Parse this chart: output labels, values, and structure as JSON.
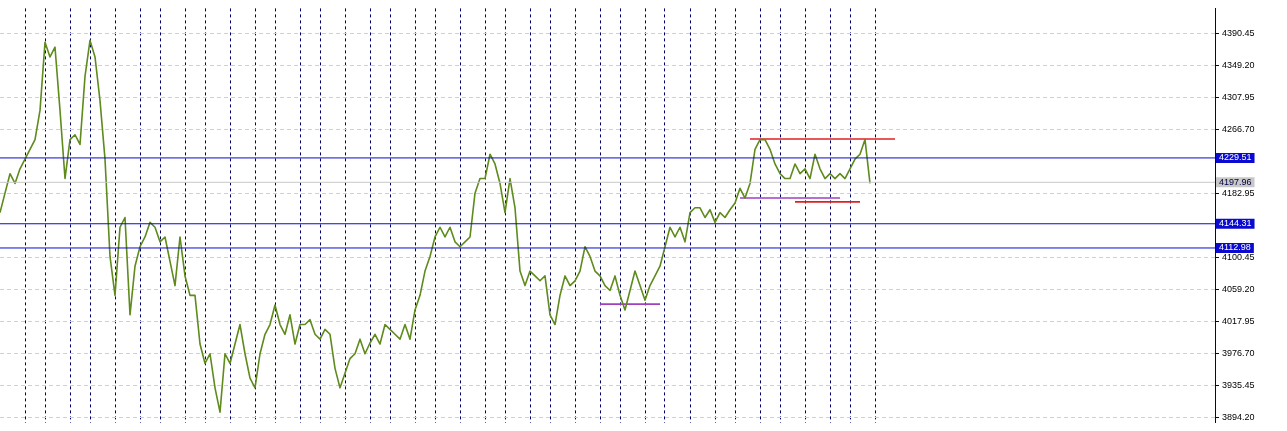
{
  "chart_data": {
    "type": "line",
    "categories": [
      null,
      null,
      null,
      null,
      null,
      null,
      null,
      null,
      null,
      null,
      null,
      null,
      null,
      null,
      null,
      null,
      null,
      null,
      null,
      null,
      null,
      null,
      null,
      null,
      null,
      null,
      null,
      null,
      null,
      null,
      null,
      null,
      null,
      null,
      null,
      null,
      null,
      null,
      null,
      null,
      null,
      null,
      null,
      null,
      null,
      null,
      null,
      null,
      null,
      null,
      null,
      null,
      null,
      null,
      null,
      null,
      null,
      null,
      null,
      null,
      null,
      null,
      null,
      null,
      null,
      null,
      null,
      null,
      null,
      null,
      null,
      null,
      null,
      null,
      null,
      null,
      null,
      null,
      null,
      null,
      null,
      null,
      null,
      null,
      null,
      null,
      null,
      null,
      null,
      null,
      null,
      null,
      null,
      null,
      null,
      null,
      null,
      null,
      null,
      null,
      null,
      null,
      null,
      null,
      null,
      null,
      null,
      null,
      null,
      null,
      null,
      null,
      null,
      null,
      null,
      null,
      null,
      null,
      null,
      null,
      null,
      null,
      null,
      null,
      null,
      null,
      null,
      null,
      null,
      null,
      null,
      null,
      null,
      null,
      null,
      null,
      null,
      null,
      null,
      null,
      null,
      null,
      null,
      null,
      null,
      null,
      null,
      null,
      null,
      null,
      null,
      null,
      null,
      null,
      null,
      null,
      null,
      null,
      null,
      null,
      null,
      null,
      null,
      null,
      null,
      null,
      null,
      null,
      null,
      null,
      null,
      null,
      null,
      null,
      null,
      null,
      null,
      null,
      null,
      null,
      null,
      null,
      null,
      null,
      null,
      null,
      null,
      null,
      null,
      null,
      null,
      null,
      null,
      null,
      null,
      null,
      null,
      null,
      null,
      null,
      null,
      null,
      null,
      null,
      null,
      null,
      null,
      null,
      null,
      null,
      null,
      null,
      null,
      null,
      null,
      null,
      null,
      null,
      null,
      null,
      null,
      null,
      null,
      null,
      null,
      null,
      null,
      null,
      null,
      null,
      null,
      null,
      null,
      null,
      null,
      null,
      null,
      null,
      null,
      null,
      null,
      null,
      null,
      null
    ],
    "ylim": [
      3887,
      4423
    ],
    "yticks": [
      4390.45,
      {
        "value": 4349.2,
        "label": "4349.20"
      },
      4307.95,
      {
        "value": 4266.7,
        "label": "4266.70"
      },
      4182.95,
      4100.45,
      {
        "value": 4059.2,
        "label": "4059.20"
      },
      4017.95,
      {
        "value": 3976.7,
        "label": "3976.70"
      },
      3935.45,
      {
        "value": 3894.2,
        "label": "3894.20"
      }
    ],
    "tick_labels": "y",
    "grid": true,
    "legend": false,
    "marker": "none",
    "line_style": "solid",
    "series": [
      {
        "color": "#5f8a1c",
        "values": [
          4158.7,
          4183.9,
          4209.1,
          4196.5,
          4215.4,
          4228.0,
          4240.6,
          4253.2,
          4291.0,
          4379.1,
          4360.2,
          4372.8,
          4291.0,
          4202.8,
          4253.2,
          4259.5,
          4246.9,
          4335.0,
          4381.6,
          4360.2,
          4303.6,
          4228.0,
          4102.0,
          4051.7,
          4139.8,
          4152.4,
          4026.5,
          4089.4,
          4114.6,
          4127.2,
          4146.1,
          4139.8,
          4120.9,
          4127.2,
          4095.7,
          4064.3,
          4127.2,
          4076.8,
          4051.7,
          4051.7,
          3988.7,
          3963.5,
          3976.1,
          3932.0,
          3900.5,
          3976.1,
          3963.5,
          3988.7,
          4013.9,
          3976.1,
          3944.6,
          3932.0,
          3976.1,
          4001.3,
          4013.9,
          4039.1,
          4013.9,
          4001.3,
          4026.5,
          3988.7,
          4013.9,
          4013.9,
          4020.2,
          4001.3,
          3995.0,
          4007.6,
          4001.3,
          3957.2,
          3932.0,
          3950.9,
          3969.8,
          3976.1,
          3995.0,
          3976.1,
          3990.0,
          4001.3,
          3988.7,
          4013.9,
          4007.6,
          4001.3,
          3995.0,
          4013.9,
          3995.0,
          4032.8,
          4051.7,
          4083.1,
          4102.0,
          4127.2,
          4139.8,
          4127.2,
          4139.8,
          4120.9,
          4114.6,
          4120.9,
          4127.2,
          4183.9,
          4202.8,
          4202.8,
          4234.3,
          4221.7,
          4196.5,
          4158.7,
          4202.8,
          4165.0,
          4083.1,
          4064.3,
          4083.1,
          4076.8,
          4070.5,
          4076.8,
          4026.5,
          4013.9,
          4051.7,
          4076.8,
          4064.3,
          4070.5,
          4083.1,
          4114.6,
          4102.0,
          4083.1,
          4076.8,
          4064.3,
          4058.0,
          4076.8,
          4051.7,
          4032.8,
          4058.0,
          4083.1,
          4064.3,
          4045.4,
          4064.3,
          4076.8,
          4089.4,
          4114.6,
          4139.8,
          4127.2,
          4139.8,
          4120.9,
          4158.7,
          4165.0,
          4165.0,
          4152.4,
          4162.5,
          4146.1,
          4158.7,
          4152.4,
          4162.5,
          4171.3,
          4190.2,
          4177.6,
          4196.5,
          4240.6,
          4253.2,
          4253.2,
          4240.6,
          4221.7,
          4209.1,
          4202.8,
          4202.8,
          4221.7,
          4209.1,
          4215.4,
          4202.8,
          4234.3,
          4215.4,
          4202.8,
          4209.1,
          4202.8,
          4209.1,
          4202.8,
          4215.4,
          4228.0,
          4234.3,
          4253.2,
          4196.5,
          null,
          null,
          null,
          null,
          null,
          null,
          null,
          null,
          null,
          null,
          null,
          null,
          null,
          null,
          null,
          null,
          null,
          null,
          null,
          null,
          null,
          null,
          null,
          null,
          null,
          null,
          null,
          null,
          null,
          null,
          null,
          null,
          null,
          null,
          null,
          null,
          null,
          null,
          null,
          null,
          null,
          null,
          null,
          null,
          null,
          null,
          null,
          null,
          null,
          null,
          null,
          null,
          null,
          null,
          null,
          null,
          null,
          null,
          null,
          null,
          null,
          null,
          null,
          null,
          null,
          null,
          null,
          null,
          null
        ]
      },
      {
        "color": "#e02020",
        "values": [
          null,
          null,
          null,
          null,
          null,
          null,
          null,
          null,
          null,
          null,
          null,
          null,
          null,
          null,
          null,
          null,
          null,
          null,
          null,
          null,
          null,
          null,
          null,
          null,
          null,
          null,
          null,
          null,
          null,
          null,
          null,
          null,
          null,
          null,
          null,
          null,
          null,
          null,
          null,
          null,
          null,
          null,
          null,
          null,
          null,
          null,
          null,
          null,
          null,
          null,
          null,
          null,
          null,
          null,
          null,
          null,
          null,
          null,
          null,
          null,
          null,
          null,
          null,
          null,
          null,
          null,
          null,
          null,
          null,
          null,
          null,
          null,
          null,
          null,
          null,
          null,
          null,
          null,
          null,
          null,
          null,
          null,
          null,
          null,
          null,
          null,
          null,
          null,
          null,
          null,
          null,
          null,
          null,
          null,
          null,
          null,
          null,
          null,
          null,
          null,
          null,
          null,
          null,
          null,
          null,
          null,
          null,
          null,
          null,
          null,
          null,
          null,
          null,
          null,
          null,
          null,
          null,
          null,
          null,
          null,
          null,
          null,
          null,
          null,
          null,
          null,
          null,
          null,
          null,
          null,
          null,
          null,
          null,
          null,
          null,
          null,
          null,
          null,
          null,
          null,
          null,
          null,
          null,
          null,
          null,
          null,
          null,
          null,
          null,
          null,
          4254,
          4254,
          4254,
          4254,
          4254,
          4254,
          4254,
          4254,
          4254,
          4254,
          4254,
          4254,
          4254,
          4254,
          4254,
          4254,
          4254,
          4254,
          4254,
          4254,
          4254,
          4254,
          4254,
          4254,
          4254,
          4254,
          4254,
          4254,
          4254,
          4254,
          null,
          null,
          null,
          null,
          null,
          null,
          null,
          null,
          null,
          null,
          null,
          null,
          null,
          null,
          null,
          null,
          null,
          null,
          null,
          null,
          null,
          null,
          null,
          null,
          null,
          null,
          null,
          null,
          null,
          null,
          null,
          null,
          null,
          null,
          null,
          null,
          null,
          null,
          null,
          null,
          null,
          null,
          null,
          null,
          null,
          null,
          null,
          null,
          null,
          null,
          null,
          null,
          null,
          null,
          null,
          null,
          null,
          null,
          null,
          null,
          null,
          null,
          null,
          null
        ]
      },
      {
        "color": "#e02020",
        "values": [
          null,
          null,
          null,
          null,
          null,
          null,
          null,
          null,
          null,
          null,
          null,
          null,
          null,
          null,
          null,
          null,
          null,
          null,
          null,
          null,
          null,
          null,
          null,
          null,
          null,
          null,
          null,
          null,
          null,
          null,
          null,
          null,
          null,
          null,
          null,
          null,
          null,
          null,
          null,
          null,
          null,
          null,
          null,
          null,
          null,
          null,
          null,
          null,
          null,
          null,
          null,
          null,
          null,
          null,
          null,
          null,
          null,
          null,
          null,
          null,
          null,
          null,
          null,
          null,
          null,
          null,
          null,
          null,
          null,
          null,
          null,
          null,
          null,
          null,
          null,
          null,
          null,
          null,
          null,
          null,
          null,
          null,
          null,
          null,
          null,
          null,
          null,
          null,
          null,
          null,
          null,
          null,
          null,
          null,
          null,
          null,
          null,
          null,
          null,
          null,
          null,
          null,
          null,
          null,
          null,
          null,
          null,
          null,
          null,
          null,
          null,
          null,
          null,
          null,
          null,
          null,
          null,
          null,
          null,
          null,
          null,
          null,
          null,
          null,
          null,
          null,
          null,
          null,
          null,
          null,
          null,
          null,
          null,
          null,
          null,
          null,
          null,
          null,
          null,
          null,
          null,
          null,
          null,
          null,
          null,
          null,
          null,
          null,
          null,
          null,
          null,
          null,
          null,
          null,
          null,
          null,
          null,
          null,
          null,
          4172.6,
          4172.6,
          4172.6,
          4172.6,
          4172.6,
          4172.6,
          4172.6,
          4172.6,
          4172.6,
          4172.6,
          4172.6,
          4172.6,
          4172.6,
          4172.6,
          null,
          null,
          null,
          null,
          null,
          null,
          null,
          null,
          null,
          null,
          null,
          null,
          null,
          null,
          null,
          null,
          null,
          null,
          null,
          null,
          null,
          null,
          null,
          null,
          null,
          null,
          null,
          null,
          null,
          null,
          null,
          null,
          null,
          null,
          null,
          null,
          null,
          null,
          null,
          null,
          null,
          null,
          null,
          null,
          null,
          null,
          null,
          null,
          null,
          null,
          null,
          null,
          null,
          null,
          null,
          null,
          null,
          null,
          null,
          null,
          null,
          null,
          null,
          null,
          null,
          null,
          null,
          null,
          null,
          null,
          null
        ]
      },
      {
        "color": "#a040c0",
        "values": [
          null,
          null,
          null,
          null,
          null,
          null,
          null,
          null,
          null,
          null,
          null,
          null,
          null,
          null,
          null,
          null,
          null,
          null,
          null,
          null,
          null,
          null,
          null,
          null,
          null,
          null,
          null,
          null,
          null,
          null,
          null,
          null,
          null,
          null,
          null,
          null,
          null,
          null,
          null,
          null,
          null,
          null,
          null,
          null,
          null,
          null,
          null,
          null,
          null,
          null,
          null,
          null,
          null,
          null,
          null,
          null,
          null,
          null,
          null,
          null,
          null,
          null,
          null,
          null,
          null,
          null,
          null,
          null,
          null,
          null,
          null,
          null,
          null,
          null,
          null,
          null,
          null,
          null,
          null,
          null,
          null,
          null,
          null,
          null,
          null,
          null,
          null,
          null,
          null,
          null,
          null,
          null,
          null,
          null,
          null,
          null,
          null,
          null,
          null,
          null,
          null,
          null,
          null,
          null,
          null,
          null,
          null,
          null,
          null,
          null,
          null,
          null,
          null,
          null,
          null,
          null,
          null,
          null,
          null,
          null,
          null,
          null,
          null,
          null,
          null,
          null,
          null,
          null,
          null,
          null,
          null,
          null,
          null,
          null,
          null,
          null,
          null,
          null,
          null,
          null,
          null,
          null,
          null,
          null,
          null,
          null,
          null,
          null,
          4177.6,
          4177.6,
          4177.6,
          4177.6,
          4177.6,
          4177.6,
          4177.6,
          4177.6,
          4177.6,
          4177.6,
          4177.6,
          4177.6,
          4177.6,
          4177.6,
          4177.6,
          4177.6,
          4177.6,
          4177.6,
          4177.6,
          4177.6,
          4177.6,
          null,
          null,
          null,
          null,
          null,
          null,
          null,
          null,
          null,
          null,
          null,
          null,
          null,
          null,
          null,
          null,
          null,
          null,
          null,
          null,
          null,
          null,
          null,
          null,
          null,
          null,
          null,
          null,
          null,
          null,
          null,
          null,
          null,
          null,
          null,
          null,
          null,
          null,
          null,
          null,
          null,
          null,
          null,
          null,
          null,
          null,
          null,
          null,
          null,
          null,
          null,
          null,
          null,
          null,
          null,
          null,
          null,
          null,
          null,
          null,
          null,
          null,
          null,
          null,
          null,
          null,
          null,
          null,
          null,
          null,
          null,
          null,
          null,
          null,
          null
        ]
      },
      {
        "color": "#a040c0",
        "values": [
          null,
          null,
          null,
          null,
          null,
          null,
          null,
          null,
          null,
          null,
          null,
          null,
          null,
          null,
          null,
          null,
          null,
          null,
          null,
          null,
          null,
          null,
          null,
          null,
          null,
          null,
          null,
          null,
          null,
          null,
          null,
          null,
          null,
          null,
          null,
          null,
          null,
          null,
          null,
          null,
          null,
          null,
          null,
          null,
          null,
          null,
          null,
          null,
          null,
          null,
          null,
          null,
          null,
          null,
          null,
          null,
          null,
          null,
          null,
          null,
          null,
          null,
          null,
          null,
          null,
          null,
          null,
          null,
          null,
          null,
          null,
          null,
          null,
          null,
          null,
          null,
          null,
          null,
          null,
          null,
          null,
          null,
          null,
          null,
          null,
          null,
          null,
          null,
          null,
          null,
          null,
          null,
          null,
          null,
          null,
          null,
          null,
          null,
          null,
          null,
          null,
          null,
          null,
          null,
          null,
          null,
          null,
          null,
          null,
          null,
          null,
          null,
          null,
          null,
          null,
          null,
          null,
          null,
          null,
          null,
          4040.3,
          4040.3,
          4040.3,
          4040.3,
          4040.3,
          4040.3,
          4040.3,
          4040.3,
          4040.3,
          4040.3,
          4040.3,
          4040.3,
          4040.3,
          null,
          null,
          null,
          null,
          null,
          null,
          null,
          null,
          null,
          null,
          null,
          null,
          null,
          null,
          null,
          null,
          null,
          null,
          null,
          null,
          null,
          null,
          null,
          null,
          null,
          null,
          null,
          null,
          null,
          null,
          null,
          null,
          null,
          null,
          null,
          null,
          null,
          null,
          null,
          null,
          null,
          null,
          null,
          null,
          null,
          null,
          null,
          null,
          null,
          null,
          null,
          null,
          null,
          null,
          null,
          null,
          null,
          null,
          null,
          null,
          null,
          null,
          null,
          null,
          null,
          null,
          null,
          null,
          null,
          null,
          null,
          null,
          null,
          null,
          null,
          null,
          null,
          null,
          null,
          null,
          null,
          null,
          null,
          null,
          null,
          null,
          null,
          null,
          null,
          null,
          null,
          null,
          null,
          null,
          null,
          null,
          null,
          null,
          null,
          null,
          null,
          null,
          null,
          null,
          null,
          null,
          null,
          null,
          null,
          null,
          null
        ]
      }
    ],
    "ref_lines": [
      {
        "axis": "y",
        "value": 4229.51,
        "label": "4229.51",
        "color": "#0a0ad0"
      },
      {
        "axis": "y",
        "value": 4197.96,
        "label": "4197.96",
        "color": "#c8c8c8"
      },
      {
        "axis": "y",
        "value": 4144.31,
        "label": "4144.31",
        "color": "#0a0ad0"
      },
      {
        "axis": "y",
        "value": 4112.98,
        "label": "4112.98",
        "color": "#0a0ad0"
      }
    ]
  }
}
